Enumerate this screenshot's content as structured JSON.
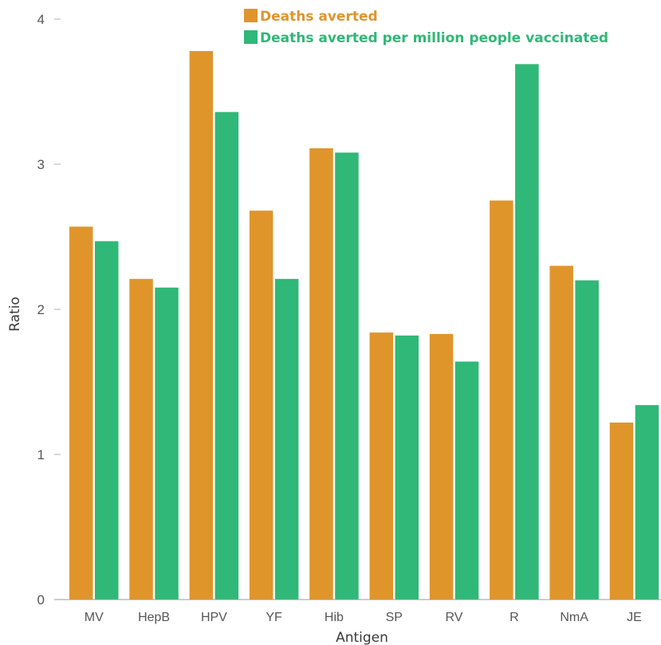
{
  "chart_data": {
    "type": "bar",
    "title": "",
    "xlabel": "Antigen",
    "ylabel": "Ratio",
    "ylim": [
      0,
      4
    ],
    "yticks": [
      0,
      1,
      2,
      3,
      4
    ],
    "grid": false,
    "legend_position": "top",
    "categories": [
      "MV",
      "HepB",
      "HPV",
      "YF",
      "Hib",
      "SP",
      "RV",
      "R",
      "NmA",
      "JE"
    ],
    "series": [
      {
        "name": "Deaths averted",
        "color": "#E0952B",
        "values": [
          2.57,
          2.21,
          3.78,
          2.68,
          3.11,
          1.84,
          1.83,
          2.75,
          2.3,
          1.22
        ]
      },
      {
        "name": "Deaths averted per million people vaccinated",
        "color": "#2FB877",
        "values": [
          2.47,
          2.15,
          3.36,
          2.21,
          3.08,
          1.82,
          1.64,
          3.69,
          2.2,
          1.34
        ]
      }
    ]
  }
}
